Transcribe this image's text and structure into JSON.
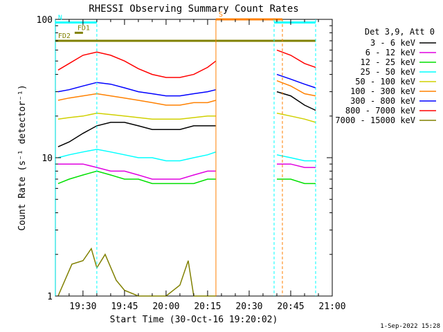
{
  "chart_data": {
    "type": "line",
    "title": "RHESSI Observing Summary Count Rates",
    "xlabel": "Start Time (30-Oct-16 19:20:02)",
    "ylabel": "Count Rate (s⁻¹ detector⁻¹)",
    "y_scale": "log",
    "ylim": [
      1,
      100
    ],
    "xlim": [
      "19:20:02",
      "21:00:00"
    ],
    "x_ticks": [
      "19:30",
      "19:45",
      "20:00",
      "20:15",
      "20:30",
      "20:45",
      "21:00"
    ],
    "y_ticks": [
      "1",
      "10",
      "100"
    ],
    "grid": false,
    "legend_position": "right",
    "legend_header": "Det 3,9, Att 0",
    "footer_date": "1-Sep-2022 15:28",
    "data_gap": {
      "start": "20:18",
      "end": "20:39"
    },
    "series": [
      {
        "name": "3 - 6 keV",
        "color": "#000000",
        "points": [
          [
            "19:21",
            12
          ],
          [
            "19:25",
            13
          ],
          [
            "19:30",
            15
          ],
          [
            "19:35",
            17
          ],
          [
            "19:40",
            18
          ],
          [
            "19:45",
            18
          ],
          [
            "19:50",
            17
          ],
          [
            "19:55",
            16
          ],
          [
            "20:00",
            16
          ],
          [
            "20:05",
            16
          ],
          [
            "20:10",
            17
          ],
          [
            "20:15",
            17
          ],
          [
            "20:18",
            17
          ],
          [
            "20:40",
            30
          ],
          [
            "20:45",
            28
          ],
          [
            "20:50",
            24
          ],
          [
            "20:54",
            22
          ]
        ]
      },
      {
        "name": "6 - 12 keV",
        "color": "#e000e0",
        "points": [
          [
            "19:21",
            9
          ],
          [
            "19:25",
            9
          ],
          [
            "19:30",
            9
          ],
          [
            "19:35",
            8.5
          ],
          [
            "19:40",
            8
          ],
          [
            "19:45",
            8
          ],
          [
            "19:50",
            7.5
          ],
          [
            "19:55",
            7
          ],
          [
            "20:00",
            7
          ],
          [
            "20:05",
            7
          ],
          [
            "20:10",
            7.5
          ],
          [
            "20:15",
            8
          ],
          [
            "20:18",
            8
          ],
          [
            "20:40",
            9
          ],
          [
            "20:45",
            9
          ],
          [
            "20:50",
            8.5
          ],
          [
            "20:54",
            8.5
          ]
        ]
      },
      {
        "name": "12 - 25 keV",
        "color": "#00e000",
        "points": [
          [
            "19:21",
            6.5
          ],
          [
            "19:25",
            7
          ],
          [
            "19:30",
            7.5
          ],
          [
            "19:35",
            8
          ],
          [
            "19:40",
            7.5
          ],
          [
            "19:45",
            7
          ],
          [
            "19:50",
            7
          ],
          [
            "19:55",
            6.5
          ],
          [
            "20:00",
            6.5
          ],
          [
            "20:05",
            6.5
          ],
          [
            "20:10",
            6.5
          ],
          [
            "20:15",
            7
          ],
          [
            "20:18",
            7
          ],
          [
            "20:40",
            7
          ],
          [
            "20:45",
            7
          ],
          [
            "20:50",
            6.5
          ],
          [
            "20:54",
            6.5
          ]
        ]
      },
      {
        "name": "25 - 50 keV",
        "color": "#00ffff",
        "points": [
          [
            "19:21",
            10
          ],
          [
            "19:25",
            10.5
          ],
          [
            "19:30",
            11
          ],
          [
            "19:35",
            11.5
          ],
          [
            "19:40",
            11
          ],
          [
            "19:45",
            10.5
          ],
          [
            "19:50",
            10
          ],
          [
            "19:55",
            10
          ],
          [
            "20:00",
            9.5
          ],
          [
            "20:05",
            9.5
          ],
          [
            "20:10",
            10
          ],
          [
            "20:15",
            10.5
          ],
          [
            "20:18",
            11
          ],
          [
            "20:40",
            10.5
          ],
          [
            "20:45",
            10
          ],
          [
            "20:50",
            9.5
          ],
          [
            "20:54",
            9.5
          ]
        ]
      },
      {
        "name": "50 - 100 keV",
        "color": "#d0d000",
        "points": [
          [
            "19:21",
            19
          ],
          [
            "19:25",
            19.5
          ],
          [
            "19:30",
            20
          ],
          [
            "19:35",
            21
          ],
          [
            "19:40",
            20.5
          ],
          [
            "19:45",
            20
          ],
          [
            "19:50",
            19.5
          ],
          [
            "19:55",
            19
          ],
          [
            "20:00",
            19
          ],
          [
            "20:05",
            19
          ],
          [
            "20:10",
            19.5
          ],
          [
            "20:15",
            20
          ],
          [
            "20:18",
            20
          ],
          [
            "20:40",
            21
          ],
          [
            "20:45",
            20
          ],
          [
            "20:50",
            19
          ],
          [
            "20:54",
            18
          ]
        ]
      },
      {
        "name": "100 - 300 keV",
        "color": "#ff8000",
        "points": [
          [
            "19:21",
            26
          ],
          [
            "19:25",
            27
          ],
          [
            "19:30",
            28
          ],
          [
            "19:35",
            29
          ],
          [
            "19:40",
            28
          ],
          [
            "19:45",
            27
          ],
          [
            "19:50",
            26
          ],
          [
            "19:55",
            25
          ],
          [
            "20:00",
            24
          ],
          [
            "20:05",
            24
          ],
          [
            "20:10",
            25
          ],
          [
            "20:15",
            25
          ],
          [
            "20:18",
            26
          ],
          [
            "20:40",
            36
          ],
          [
            "20:45",
            33
          ],
          [
            "20:50",
            29
          ],
          [
            "20:54",
            28
          ]
        ]
      },
      {
        "name": "300 - 800 keV",
        "color": "#0000ff",
        "points": [
          [
            "19:21",
            30
          ],
          [
            "19:25",
            31
          ],
          [
            "19:30",
            33
          ],
          [
            "19:35",
            35
          ],
          [
            "19:40",
            34
          ],
          [
            "19:45",
            32
          ],
          [
            "19:50",
            30
          ],
          [
            "19:55",
            29
          ],
          [
            "20:00",
            28
          ],
          [
            "20:05",
            28
          ],
          [
            "20:10",
            29
          ],
          [
            "20:15",
            30
          ],
          [
            "20:18",
            31
          ],
          [
            "20:40",
            40
          ],
          [
            "20:45",
            37
          ],
          [
            "20:50",
            34
          ],
          [
            "20:54",
            32
          ]
        ]
      },
      {
        "name": "800 - 7000 keV",
        "color": "#ff0000",
        "points": [
          [
            "19:21",
            43
          ],
          [
            "19:25",
            48
          ],
          [
            "19:30",
            55
          ],
          [
            "19:35",
            58
          ],
          [
            "19:40",
            55
          ],
          [
            "19:45",
            50
          ],
          [
            "19:50",
            44
          ],
          [
            "19:55",
            40
          ],
          [
            "20:00",
            38
          ],
          [
            "20:05",
            38
          ],
          [
            "20:10",
            40
          ],
          [
            "20:15",
            45
          ],
          [
            "20:18",
            50
          ],
          [
            "20:40",
            60
          ],
          [
            "20:45",
            55
          ],
          [
            "20:50",
            48
          ],
          [
            "20:54",
            45
          ]
        ]
      },
      {
        "name": "7000 - 15000 keV",
        "color": "#808000",
        "points": [
          [
            "19:21",
            1
          ],
          [
            "19:26",
            1.7
          ],
          [
            "19:30",
            1.8
          ],
          [
            "19:33",
            2.2
          ],
          [
            "19:35",
            1.6
          ],
          [
            "19:38",
            2.0
          ],
          [
            "19:42",
            1.3
          ],
          [
            "19:45",
            1.1
          ],
          [
            "19:50",
            1.0
          ],
          [
            "19:55",
            1.0
          ],
          [
            "20:00",
            1.0
          ],
          [
            "20:05",
            1.2
          ],
          [
            "20:08",
            1.8
          ],
          [
            "20:10",
            1.0
          ],
          [
            "20:15",
            1.0
          ],
          [
            "20:18",
            1.0
          ]
        ]
      }
    ],
    "annotations": [
      {
        "label": "N",
        "color": "#00ffff",
        "start": "19:20",
        "end": "19:35",
        "level": 95,
        "lines": [
          "19:20",
          "19:35"
        ],
        "solid_line": "19:20"
      },
      {
        "label": "FD1",
        "color": "#808000",
        "start": "19:27",
        "end": "19:30",
        "level": 80
      },
      {
        "label": "FD2",
        "color": "#808000",
        "start": "19:20",
        "end": "20:54",
        "level": 70
      },
      {
        "label": "S",
        "color": "#ff8000",
        "start": "20:18",
        "end": "20:42",
        "level": 100,
        "lines": [
          "20:18",
          "20:42"
        ]
      },
      {
        "label": "",
        "color": "#00ffff",
        "start": "20:39",
        "end": "20:54",
        "level": 95,
        "lines": [
          "20:39",
          "20:54"
        ]
      }
    ]
  }
}
